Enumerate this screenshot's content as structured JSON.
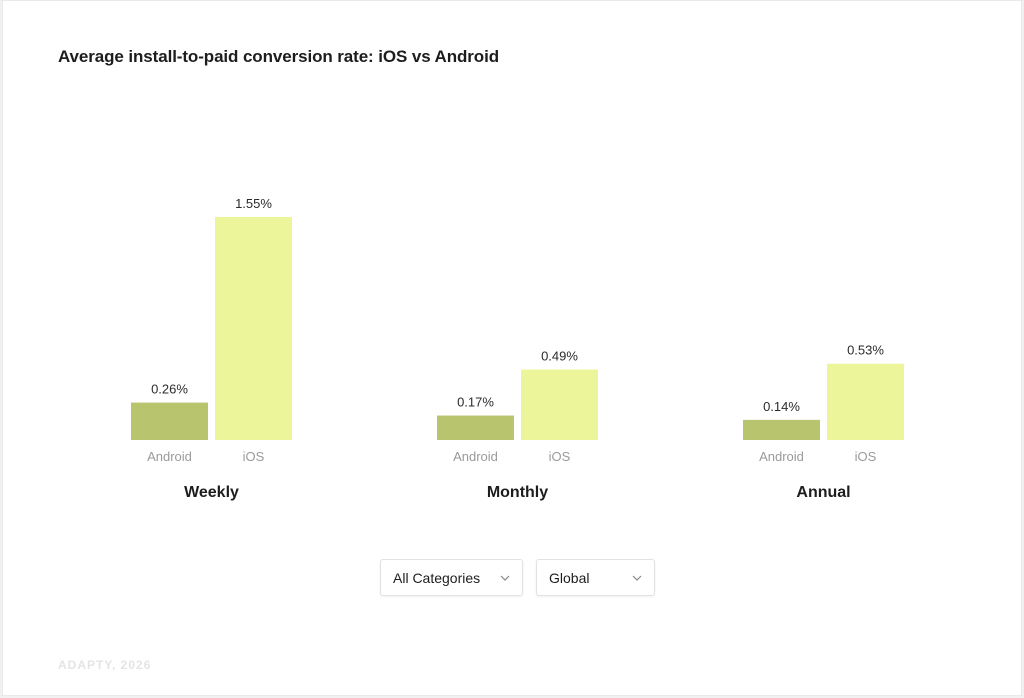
{
  "title": "Average install-to-paid conversion rate: iOS vs Android",
  "footer": "ADAPTY, 2026",
  "filters": {
    "category": "All Categories",
    "region": "Global"
  },
  "colors": {
    "android": "#b8c46e",
    "ios": "#edf59a"
  },
  "chart_data": {
    "type": "bar",
    "title": "Average install-to-paid conversion rate: iOS vs Android",
    "categories": [
      "Weekly",
      "Monthly",
      "Annual"
    ],
    "series": [
      {
        "name": "Android",
        "values": [
          0.26,
          0.17,
          0.14
        ],
        "labels": [
          "0.26%",
          "0.17%",
          "0.14%"
        ]
      },
      {
        "name": "iOS",
        "values": [
          1.55,
          0.49,
          0.53
        ],
        "labels": [
          "1.55%",
          "0.49%",
          "0.53%"
        ]
      }
    ],
    "unit": "%",
    "grid": false
  }
}
